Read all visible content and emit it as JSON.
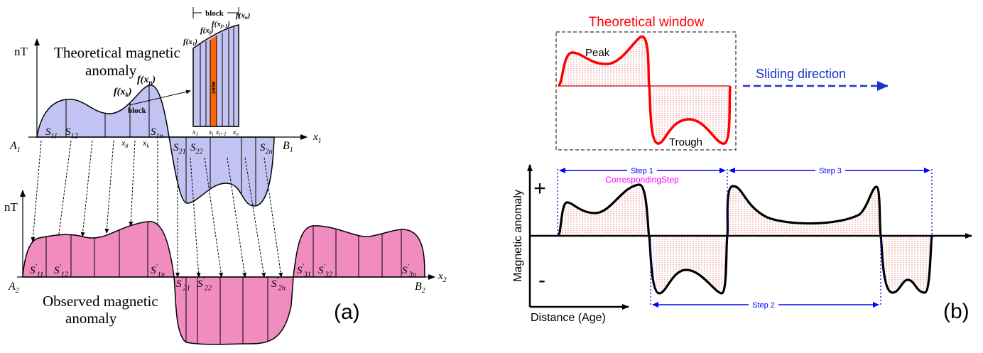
{
  "panel_a": {
    "label": "(a)",
    "y_axis_label_top": "nT",
    "y_axis_label_bottom": "nT",
    "x_axis_label_top": "x",
    "x_axis_label_top_sub": "1",
    "x_axis_label_bottom": "x",
    "x_axis_label_bottom_sub": "2",
    "theoretical_title_line1": "Theoretical magnetic",
    "theoretical_title_line2": "anomaly",
    "observed_title_line1": "Observed magnetic",
    "observed_title_line2": "anomaly",
    "point_A1": "A",
    "point_A1_sub": "1",
    "point_B1": "B",
    "point_B1_sub": "1",
    "point_A2": "A",
    "point_A2_sub": "2",
    "point_B2": "B",
    "point_B2_sub": "2",
    "fx_k": "f(x",
    "fx_k_sub": "k",
    "fx_n": "f(x",
    "fx_n_sub": "n",
    "block_pointer_label": "block",
    "tick_x8": "x",
    "tick_x8_sub": "8",
    "tick_xk": "x",
    "tick_xk_sub": "k",
    "top_areas": [
      {
        "main": "S",
        "sub": "11"
      },
      {
        "main": "S",
        "sub": "12"
      },
      {
        "main": "S",
        "sub": "1n"
      },
      {
        "main": "S",
        "sub": "21"
      },
      {
        "main": "S",
        "sub": "22"
      },
      {
        "main": "S",
        "sub": "2n"
      }
    ],
    "bottom_areas": [
      {
        "main": "S",
        "sub": "11"
      },
      {
        "main": "S",
        "sub": "12"
      },
      {
        "main": "S",
        "sub": "1n"
      },
      {
        "main": "S",
        "sub": "21"
      },
      {
        "main": "S",
        "sub": "22"
      },
      {
        "main": "S",
        "sub": "2n"
      },
      {
        "main": "S",
        "sub": "31"
      },
      {
        "main": "S",
        "sub": "32"
      },
      {
        "main": "S",
        "sub": "3n"
      }
    ],
    "inset": {
      "block_label": "block",
      "zone_label": "zone",
      "fx_labels": [
        {
          "main": "f(x",
          "sub": "1"
        },
        {
          "main": "f(x",
          "sub": "j"
        },
        {
          "main": "f(x",
          "sub": "j+1"
        },
        {
          "main": "f(x",
          "sub": "n"
        }
      ],
      "x_labels": [
        {
          "main": "x",
          "sub": "1"
        },
        {
          "main": "x",
          "sub": "j"
        },
        {
          "main": "x",
          "sub": "j+1"
        },
        {
          "main": "x",
          "sub": "n"
        }
      ]
    },
    "colors": {
      "theoretical_fill": "#c3c3f3",
      "observed_fill": "#f08cc0",
      "zone_fill": "#ff6600"
    }
  },
  "panel_b": {
    "label": "(b)",
    "window_title": "Theoretical window",
    "peak_label": "Peak",
    "trough_label": "Trough",
    "sliding_label": "Sliding direction",
    "plus_sign": "+",
    "minus_sign": "-",
    "y_axis_label": "Magnetic anomaly",
    "x_axis_label": "Distance (Age)",
    "step1_label": "Step 1",
    "step2_label": "Step 2",
    "step3_label": "Step 3",
    "corresponding_label": "CorrespondingStep",
    "colors": {
      "window_title": "#ff0000",
      "window_curve": "#ff0000",
      "hatch": "#e06060",
      "sliding": "#1a33cc",
      "step_arrows": "#0000ff",
      "corresponding": "#ff00ff"
    }
  }
}
